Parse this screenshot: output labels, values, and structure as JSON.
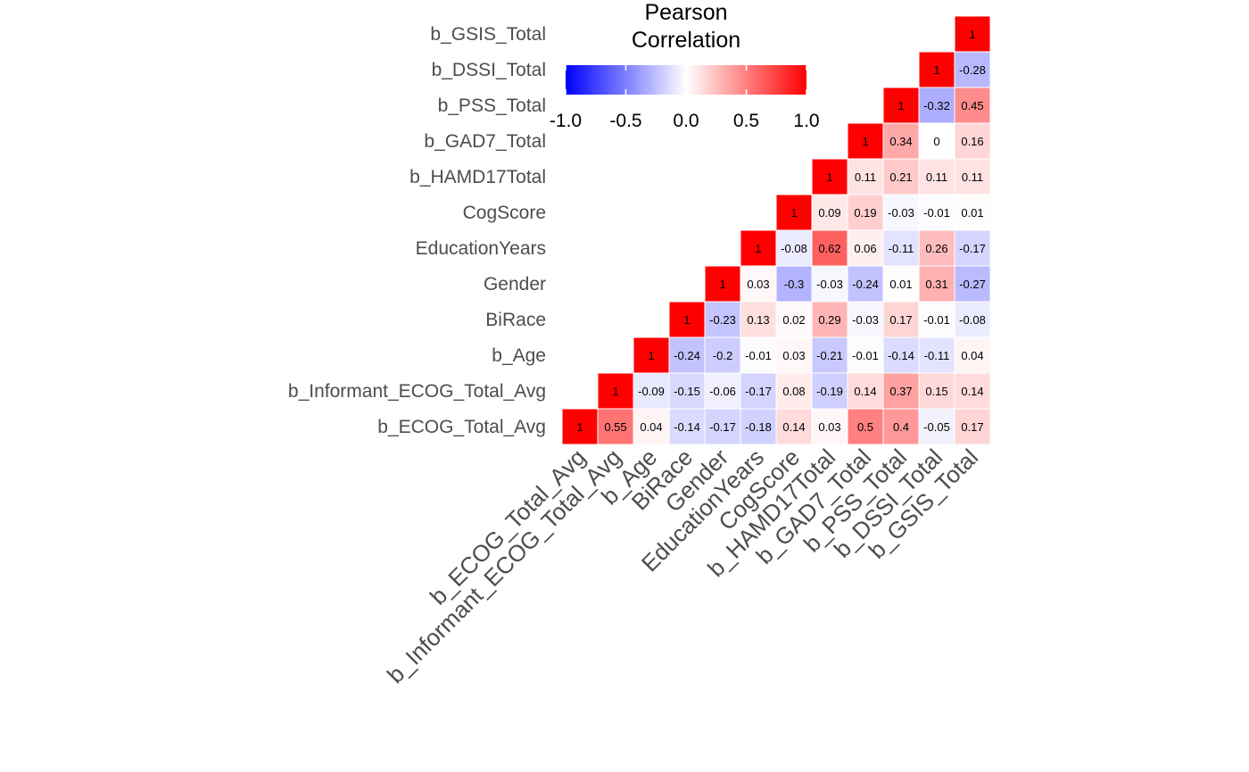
{
  "chart_data": {
    "type": "heatmap",
    "subtype": "correlation-matrix-upper-triangle",
    "variables": [
      "b_ECOG_Total_Avg",
      "b_Informant_ECOG_Total_Avg",
      "b_Age",
      "BiRace",
      "Gender",
      "EducationYears",
      "CogScore",
      "b_HAMD17Total",
      "b_GAD7_Total",
      "b_PSS_Total",
      "b_DSSI_Total",
      "b_GSIS_Total"
    ],
    "values": [
      [
        1,
        0.55,
        0.04,
        -0.14,
        -0.17,
        -0.18,
        0.14,
        0.03,
        0.5,
        0.4,
        -0.05,
        0.17
      ],
      [
        null,
        1,
        -0.09,
        -0.15,
        -0.06,
        -0.17,
        0.08,
        -0.19,
        0.14,
        0.37,
        0.15,
        0.14
      ],
      [
        null,
        null,
        1,
        -0.24,
        -0.2,
        -0.01,
        0.03,
        -0.21,
        -0.01,
        -0.14,
        -0.11,
        0.04
      ],
      [
        null,
        null,
        null,
        1,
        -0.23,
        0.13,
        0.02,
        0.29,
        -0.03,
        0.17,
        -0.01,
        -0.08
      ],
      [
        null,
        null,
        null,
        null,
        1,
        0.03,
        -0.3,
        -0.03,
        -0.24,
        0.01,
        0.31,
        -0.27
      ],
      [
        null,
        null,
        null,
        null,
        null,
        1,
        -0.08,
        0.62,
        0.06,
        -0.11,
        0.26,
        -0.17
      ],
      [
        null,
        null,
        null,
        null,
        null,
        null,
        1,
        0.09,
        0.19,
        -0.03,
        -0.01,
        0.01
      ],
      [
        null,
        null,
        null,
        null,
        null,
        null,
        null,
        1,
        0.11,
        0.21,
        0.11,
        0.11
      ],
      [
        null,
        null,
        null,
        null,
        null,
        null,
        null,
        null,
        1,
        0.34,
        0,
        0.16
      ],
      [
        null,
        null,
        null,
        null,
        null,
        null,
        null,
        null,
        null,
        1,
        -0.32,
        0.45
      ],
      [
        null,
        null,
        null,
        null,
        null,
        null,
        null,
        null,
        null,
        null,
        1,
        -0.28
      ],
      [
        null,
        null,
        null,
        null,
        null,
        null,
        null,
        null,
        null,
        null,
        null,
        1
      ]
    ],
    "legend": {
      "title_line1": "Pearson",
      "title_line2": "Correlation",
      "limits": [
        -1,
        1
      ],
      "ticks": [
        "-1.0",
        "-0.5",
        "0.0",
        "0.5",
        "1.0"
      ],
      "low_color": "#0000ff",
      "mid_color": "#ffffff",
      "high_color": "#ff0000",
      "placement": "top-center"
    },
    "grid": false,
    "text_color": "#000000",
    "label_color": "#4d4d4d"
  }
}
